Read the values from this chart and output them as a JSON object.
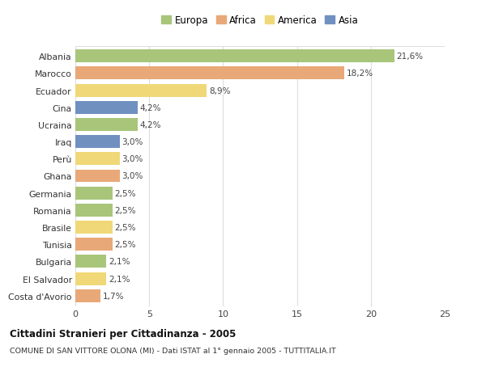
{
  "countries": [
    "Albania",
    "Marocco",
    "Ecuador",
    "Cina",
    "Ucraina",
    "Iraq",
    "Perù",
    "Ghana",
    "Germania",
    "Romania",
    "Brasile",
    "Tunisia",
    "Bulgaria",
    "El Salvador",
    "Costa d'Avorio"
  ],
  "values": [
    21.6,
    18.2,
    8.9,
    4.2,
    4.2,
    3.0,
    3.0,
    3.0,
    2.5,
    2.5,
    2.5,
    2.5,
    2.1,
    2.1,
    1.7
  ],
  "labels": [
    "21,6%",
    "18,2%",
    "8,9%",
    "4,2%",
    "4,2%",
    "3,0%",
    "3,0%",
    "3,0%",
    "2,5%",
    "2,5%",
    "2,5%",
    "2,5%",
    "2,1%",
    "2,1%",
    "1,7%"
  ],
  "continents": [
    "Europa",
    "Africa",
    "America",
    "Asia",
    "Europa",
    "Asia",
    "America",
    "Africa",
    "Europa",
    "Europa",
    "America",
    "Africa",
    "Europa",
    "America",
    "Africa"
  ],
  "continent_colors": {
    "Europa": "#a8c57a",
    "Africa": "#e8a878",
    "America": "#f0d878",
    "Asia": "#7090c0"
  },
  "legend_order": [
    "Europa",
    "Africa",
    "America",
    "Asia"
  ],
  "title": "Cittadini Stranieri per Cittadinanza - 2005",
  "subtitle": "COMUNE DI SAN VITTORE OLONA (MI) - Dati ISTAT al 1° gennaio 2005 - TUTTITALIA.IT",
  "xlim": [
    0,
    25
  ],
  "xticks": [
    0,
    5,
    10,
    15,
    20,
    25
  ],
  "background_color": "#ffffff",
  "grid_color": "#dddddd",
  "bar_height": 0.75
}
